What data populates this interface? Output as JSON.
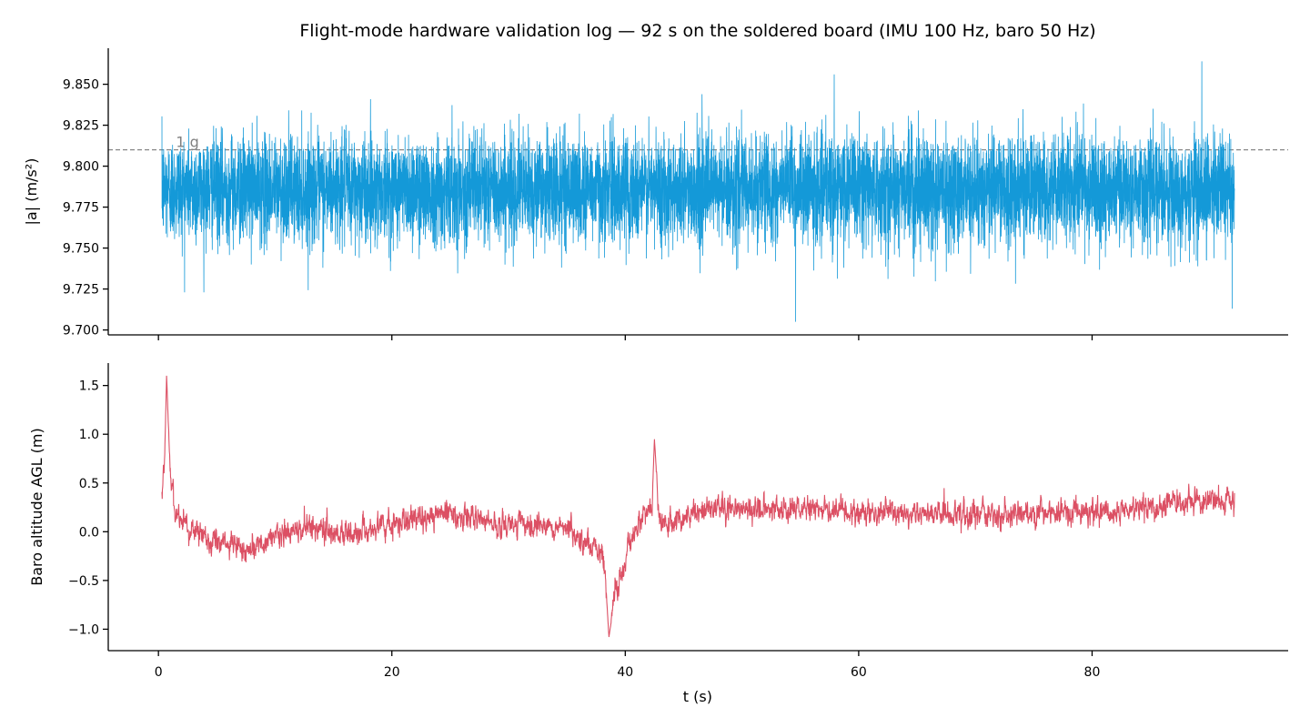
{
  "figure_title": "Flight-mode hardware validation log — 92 s on the soldered board (IMU 100 Hz, baro 50 Hz)",
  "colors": {
    "accel": "#1499d8",
    "baro": "#dc5064",
    "reference": "#888888",
    "axes": "#000000"
  },
  "chart_data": [
    {
      "type": "line",
      "series": [
        {
          "color": "#1499d8",
          "sample_rate_hz": 100,
          "t_range": [
            0.3,
            92.2
          ],
          "mean": 9.786,
          "noise_std": 0.016,
          "values_min": 9.705,
          "values_max": 9.864,
          "extremes": [
            {
              "t": 54.6,
              "value": 9.705
            },
            {
              "t": 89.4,
              "value": 9.864
            },
            {
              "t": 92.0,
              "value": 9.713
            },
            {
              "t": 57.9,
              "value": 9.856
            }
          ]
        }
      ],
      "reference_line": {
        "y": 9.81,
        "label": "1 g",
        "style": "dashed",
        "color": "#888888"
      },
      "xlabel": "",
      "ylabel": "|a| (m/s²)",
      "ylim": [
        9.697,
        9.872
      ],
      "yticks": [
        9.7,
        9.725,
        9.75,
        9.775,
        9.8,
        9.825,
        9.85
      ],
      "ytick_labels": [
        "9.700",
        "9.725",
        "9.750",
        "9.775",
        "9.800",
        "9.825",
        "9.850"
      ],
      "xlim": [
        -4.3,
        96.8
      ],
      "xticks": [
        0,
        20,
        40,
        60,
        80
      ],
      "xtick_labels_shown": false,
      "grid": false
    },
    {
      "type": "line",
      "series": [
        {
          "color": "#dc5064",
          "sample_rate_hz": 50,
          "t_range": [
            0.3,
            92.2
          ],
          "noise_std": 0.055,
          "values_min": -1.08,
          "values_max": 1.6,
          "trend_points": [
            [
              0.3,
              0.45
            ],
            [
              0.55,
              0.85
            ],
            [
              0.7,
              1.6
            ],
            [
              1.0,
              0.6
            ],
            [
              1.4,
              0.25
            ],
            [
              2.5,
              0.05
            ],
            [
              5.0,
              -0.12
            ],
            [
              7.5,
              -0.18
            ],
            [
              10.0,
              -0.05
            ],
            [
              13.0,
              0.05
            ],
            [
              16.0,
              -0.02
            ],
            [
              19.0,
              0.05
            ],
            [
              22.0,
              0.12
            ],
            [
              24.0,
              0.2
            ],
            [
              27.0,
              0.12
            ],
            [
              30.0,
              0.08
            ],
            [
              33.0,
              0.08
            ],
            [
              35.5,
              0.02
            ],
            [
              37.5,
              -0.15
            ],
            [
              38.2,
              -0.28
            ],
            [
              38.6,
              -1.08
            ],
            [
              39.2,
              -0.6
            ],
            [
              40.5,
              -0.1
            ],
            [
              41.5,
              0.15
            ],
            [
              42.3,
              0.3
            ],
            [
              42.5,
              0.95
            ],
            [
              42.9,
              0.15
            ],
            [
              44.0,
              0.08
            ],
            [
              46.0,
              0.2
            ],
            [
              48.0,
              0.25
            ],
            [
              52.0,
              0.22
            ],
            [
              56.0,
              0.25
            ],
            [
              60.0,
              0.22
            ],
            [
              64.0,
              0.2
            ],
            [
              68.0,
              0.18
            ],
            [
              72.0,
              0.17
            ],
            [
              76.0,
              0.2
            ],
            [
              80.0,
              0.2
            ],
            [
              84.0,
              0.24
            ],
            [
              88.0,
              0.3
            ],
            [
              90.0,
              0.32
            ],
            [
              92.2,
              0.3
            ]
          ]
        }
      ],
      "xlabel": "t (s)",
      "ylabel": "Baro altitude AGL (m)",
      "ylim": [
        -1.22,
        1.73
      ],
      "yticks": [
        -1.0,
        -0.5,
        0.0,
        0.5,
        1.0,
        1.5
      ],
      "ytick_labels": [
        "−1.0",
        "−0.5",
        "0.0",
        "0.5",
        "1.0",
        "1.5"
      ],
      "xlim": [
        -4.3,
        96.8
      ],
      "xticks": [
        0,
        20,
        40,
        60,
        80
      ],
      "xtick_labels": [
        "0",
        "20",
        "40",
        "60",
        "80"
      ],
      "grid": false
    }
  ]
}
